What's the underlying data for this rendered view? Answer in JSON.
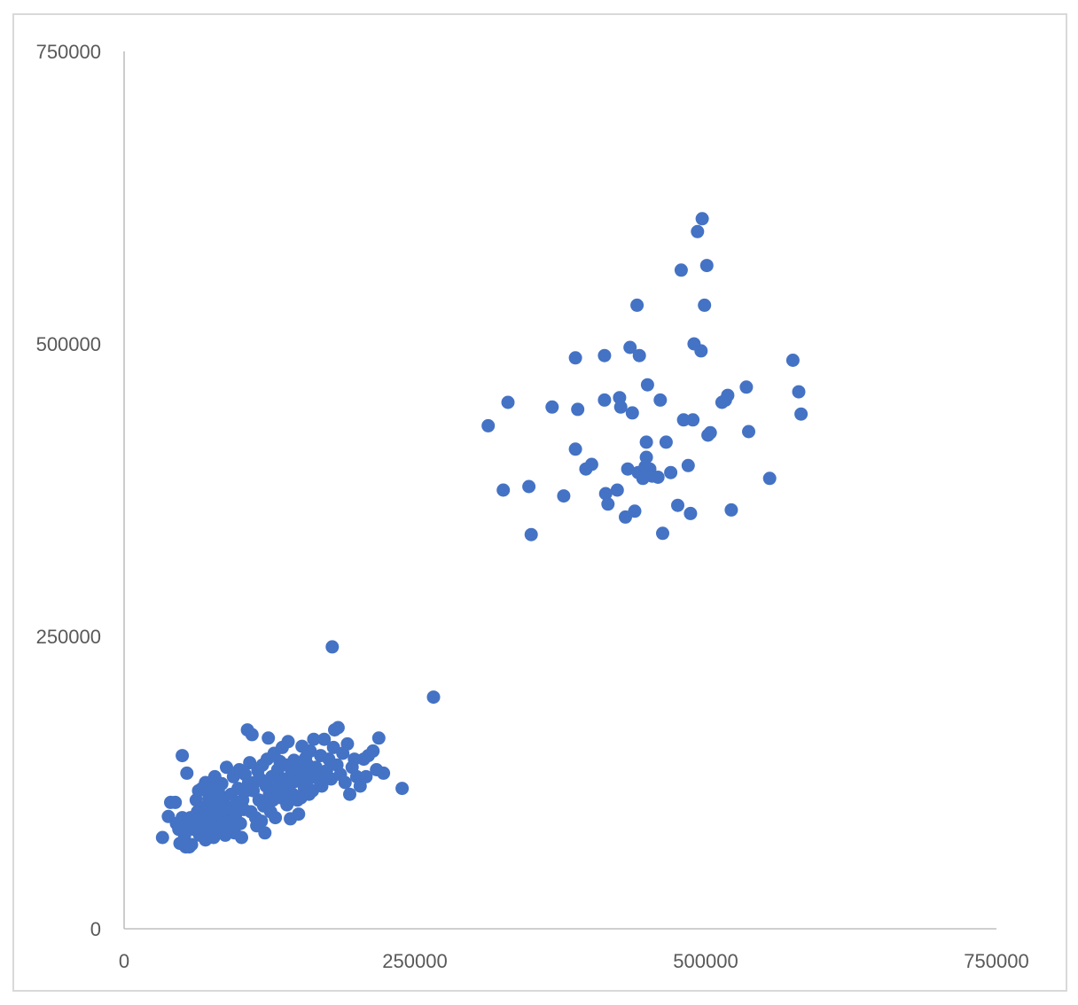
{
  "chart_data": {
    "type": "scatter",
    "title": "",
    "xlabel": "",
    "ylabel": "",
    "xlim": [
      0,
      750000
    ],
    "ylim": [
      0,
      750000
    ],
    "x_ticks": [
      "0",
      "250000",
      "500000",
      "750000"
    ],
    "y_ticks": [
      "0",
      "250000",
      "500000",
      "750000"
    ],
    "grid": false,
    "legend": "none",
    "marker_color": "#4472C4",
    "series": [
      {
        "points": [
          [
            33000,
            78000
          ],
          [
            38000,
            96000
          ],
          [
            40000,
            108000
          ],
          [
            44000,
            108000
          ],
          [
            45000,
            90000
          ],
          [
            47000,
            85000
          ],
          [
            48000,
            73000
          ],
          [
            50000,
            95000
          ],
          [
            50000,
            148000
          ],
          [
            52000,
            80000
          ],
          [
            53000,
            70000
          ],
          [
            54000,
            133000
          ],
          [
            55000,
            90000
          ],
          [
            56000,
            70000
          ],
          [
            57000,
            95000
          ],
          [
            58000,
            72000
          ],
          [
            58000,
            88000
          ],
          [
            60000,
            85000
          ],
          [
            61000,
            92000
          ],
          [
            62000,
            110000
          ],
          [
            63000,
            100000
          ],
          [
            64000,
            118000
          ],
          [
            65000,
            80000
          ],
          [
            66000,
            96000
          ],
          [
            67000,
            120000
          ],
          [
            68000,
            90000
          ],
          [
            69000,
            104000
          ],
          [
            70000,
            125000
          ],
          [
            70000,
            76000
          ],
          [
            72000,
            96000
          ],
          [
            73000,
            112000
          ],
          [
            74000,
            86000
          ],
          [
            75000,
            122000
          ],
          [
            76000,
            100000
          ],
          [
            77000,
            78000
          ],
          [
            78000,
            130000
          ],
          [
            79000,
            108000
          ],
          [
            80000,
            92000
          ],
          [
            81000,
            118000
          ],
          [
            82000,
            86000
          ],
          [
            83000,
            100000
          ],
          [
            84000,
            124000
          ],
          [
            85000,
            95000
          ],
          [
            86000,
            112000
          ],
          [
            87000,
            80000
          ],
          [
            88000,
            138000
          ],
          [
            89000,
            104000
          ],
          [
            90000,
            92000
          ],
          [
            91000,
            86000
          ],
          [
            92000,
            115000
          ],
          [
            93000,
            102000
          ],
          [
            94000,
            130000
          ],
          [
            95000,
            82000
          ],
          [
            96000,
            98000
          ],
          [
            97000,
            108000
          ],
          [
            98000,
            120000
          ],
          [
            99000,
            136000
          ],
          [
            100000,
            90000
          ],
          [
            101000,
            78000
          ],
          [
            102000,
            110000
          ],
          [
            103000,
            102000
          ],
          [
            104000,
            132000
          ],
          [
            105000,
            118000
          ],
          [
            106000,
            170000
          ],
          [
            107000,
            125000
          ],
          [
            108000,
            142000
          ],
          [
            109000,
            100000
          ],
          [
            110000,
            166000
          ],
          [
            111000,
            118000
          ],
          [
            112000,
            125000
          ],
          [
            113000,
            95000
          ],
          [
            114000,
            88000
          ],
          [
            115000,
            135000
          ],
          [
            116000,
            110000
          ],
          [
            117000,
            128000
          ],
          [
            118000,
            92000
          ],
          [
            119000,
            140000
          ],
          [
            120000,
            105000
          ],
          [
            121000,
            82000
          ],
          [
            122000,
            122000
          ],
          [
            123000,
            145000
          ],
          [
            124000,
            163000
          ],
          [
            125000,
            115000
          ],
          [
            126000,
            100000
          ],
          [
            127000,
            130000
          ],
          [
            128000,
            110000
          ],
          [
            129000,
            150000
          ],
          [
            130000,
            95000
          ],
          [
            131000,
            120000
          ],
          [
            132000,
            136000
          ],
          [
            133000,
            126000
          ],
          [
            134000,
            143000
          ],
          [
            135000,
            112000
          ],
          [
            136000,
            155000
          ],
          [
            137000,
            118000
          ],
          [
            138000,
            128000
          ],
          [
            139000,
            140000
          ],
          [
            140000,
            106000
          ],
          [
            141000,
            160000
          ],
          [
            142000,
            122000
          ],
          [
            143000,
            94000
          ],
          [
            144000,
            132000
          ],
          [
            145000,
            115000
          ],
          [
            146000,
            144000
          ],
          [
            147000,
            126000
          ],
          [
            148000,
            138000
          ],
          [
            149000,
            110000
          ],
          [
            150000,
            98000
          ],
          [
            151000,
            128000
          ],
          [
            152000,
            112000
          ],
          [
            153000,
            156000
          ],
          [
            154000,
            134000
          ],
          [
            155000,
            120000
          ],
          [
            156000,
            146000
          ],
          [
            157000,
            125000
          ],
          [
            158000,
            140000
          ],
          [
            159000,
            115000
          ],
          [
            160000,
            152000
          ],
          [
            161000,
            130000
          ],
          [
            162000,
            118000
          ],
          [
            163000,
            162000
          ],
          [
            165000,
            138000
          ],
          [
            167000,
            128000
          ],
          [
            169000,
            148000
          ],
          [
            170000,
            122000
          ],
          [
            172000,
            162000
          ],
          [
            174000,
            135000
          ],
          [
            176000,
            145000
          ],
          [
            178000,
            128000
          ],
          [
            179000,
            241000
          ],
          [
            180000,
            155000
          ],
          [
            181000,
            170000
          ],
          [
            183000,
            140000
          ],
          [
            184000,
            172000
          ],
          [
            186000,
            132000
          ],
          [
            188000,
            150000
          ],
          [
            190000,
            125000
          ],
          [
            192000,
            158000
          ],
          [
            194000,
            115000
          ],
          [
            196000,
            138000
          ],
          [
            198000,
            145000
          ],
          [
            200000,
            130000
          ],
          [
            203000,
            122000
          ],
          [
            206000,
            145000
          ],
          [
            208000,
            130000
          ],
          [
            210000,
            148000
          ],
          [
            214000,
            152000
          ],
          [
            217000,
            136000
          ],
          [
            219000,
            163000
          ],
          [
            223000,
            133000
          ],
          [
            239000,
            120000
          ],
          [
            266000,
            198000
          ],
          [
            313000,
            430000
          ],
          [
            326000,
            375000
          ],
          [
            330000,
            450000
          ],
          [
            348000,
            378000
          ],
          [
            350000,
            337000
          ],
          [
            368000,
            446000
          ],
          [
            378000,
            370000
          ],
          [
            388000,
            488000
          ],
          [
            388000,
            410000
          ],
          [
            390000,
            444000
          ],
          [
            397000,
            393000
          ],
          [
            402000,
            397000
          ],
          [
            413000,
            490000
          ],
          [
            413000,
            452000
          ],
          [
            414000,
            372000
          ],
          [
            416000,
            363000
          ],
          [
            424000,
            375000
          ],
          [
            426000,
            454000
          ],
          [
            427000,
            446000
          ],
          [
            431000,
            352000
          ],
          [
            433000,
            393000
          ],
          [
            435000,
            497000
          ],
          [
            437000,
            441000
          ],
          [
            439000,
            357000
          ],
          [
            441000,
            533000
          ],
          [
            442000,
            390000
          ],
          [
            443000,
            490000
          ],
          [
            446000,
            385000
          ],
          [
            448000,
            395000
          ],
          [
            449000,
            403000
          ],
          [
            449000,
            416000
          ],
          [
            450000,
            465000
          ],
          [
            452000,
            393000
          ],
          [
            454000,
            387000
          ],
          [
            459000,
            386000
          ],
          [
            461000,
            452000
          ],
          [
            463000,
            338000
          ],
          [
            466000,
            416000
          ],
          [
            470000,
            390000
          ],
          [
            476000,
            362000
          ],
          [
            479000,
            563000
          ],
          [
            481000,
            435000
          ],
          [
            485000,
            396000
          ],
          [
            487000,
            355000
          ],
          [
            489000,
            435000
          ],
          [
            490000,
            500000
          ],
          [
            493000,
            596000
          ],
          [
            496000,
            494000
          ],
          [
            497000,
            607000
          ],
          [
            499000,
            533000
          ],
          [
            501000,
            567000
          ],
          [
            502000,
            422000
          ],
          [
            504000,
            424000
          ],
          [
            514000,
            450000
          ],
          [
            517000,
            452000
          ],
          [
            519000,
            456000
          ],
          [
            522000,
            358000
          ],
          [
            535000,
            463000
          ],
          [
            537000,
            425000
          ],
          [
            555000,
            385000
          ],
          [
            575000,
            486000
          ],
          [
            580000,
            459000
          ],
          [
            582000,
            440000
          ]
        ]
      }
    ]
  }
}
